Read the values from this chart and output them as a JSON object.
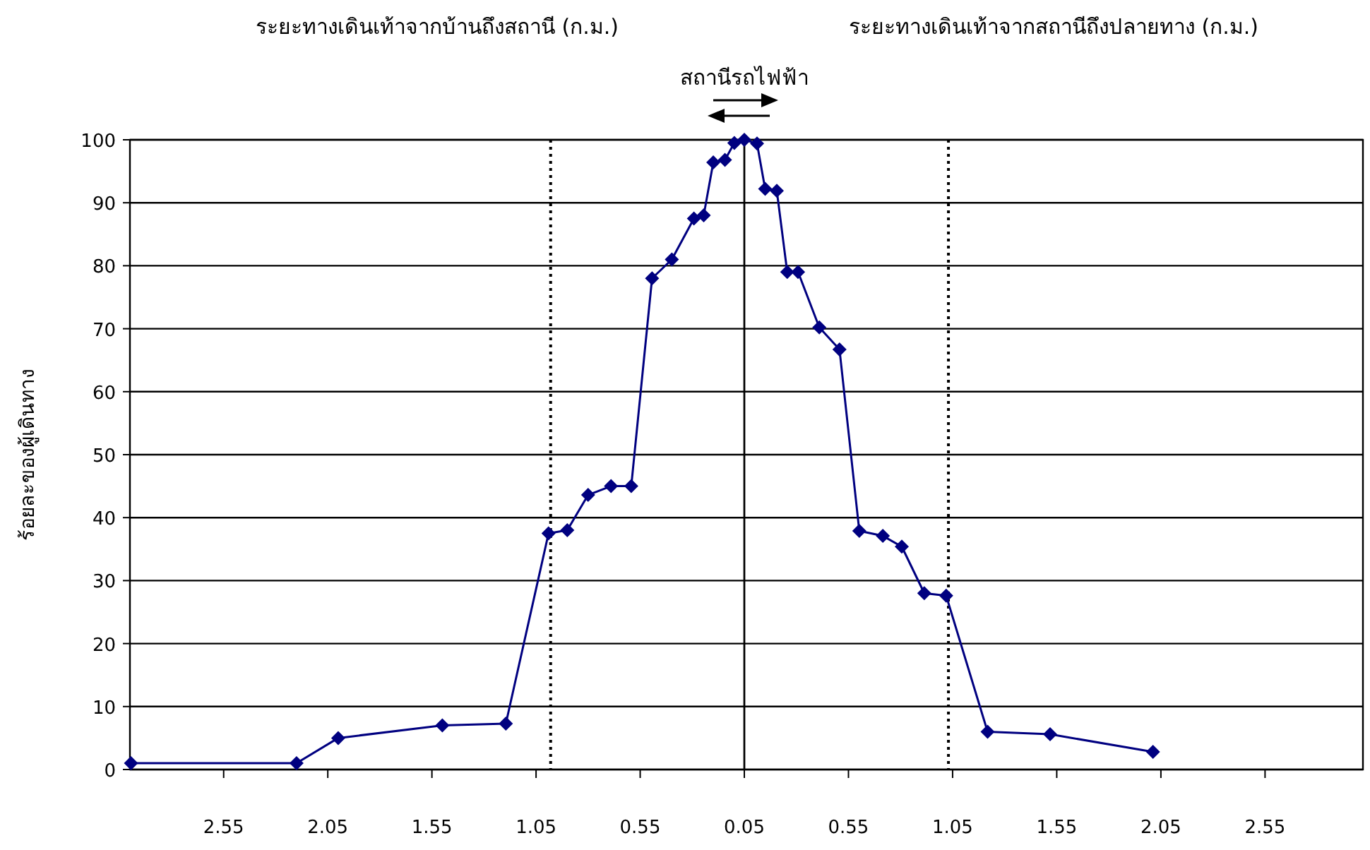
{
  "chart_data": [
    {
      "type": "line",
      "ylabel": "ร้อยละของผู้เดินทาง",
      "annotations": [
        "ระยะทางเดินเท้าจากบ้านถึงสถานี (ก.ม.)",
        "สถานีรถไฟฟ้า"
      ],
      "x": [
        2.995,
        2.2,
        2.0,
        1.5,
        1.195,
        0.99,
        0.9,
        0.8,
        0.69,
        0.593,
        0.493,
        0.398,
        0.292,
        0.245,
        0.199,
        0.143,
        0.098
      ],
      "series": [
        {
          "color": "#000080",
          "values": [
            1,
            1,
            5,
            7,
            7.3,
            37.5,
            38,
            43.6,
            45,
            45,
            78,
            81,
            87.5,
            88,
            96.4,
            96.8,
            99.5
          ]
        }
      ],
      "xlim": [
        3.0,
        0.05
      ],
      "xticks": [
        2.55,
        2.05,
        1.55,
        1.05,
        0.55,
        0.05
      ],
      "ylim": [
        0,
        100
      ],
      "yticks": [
        0,
        10,
        20,
        30,
        40,
        50,
        60,
        70,
        80,
        90,
        100
      ],
      "grid": "y",
      "marker": "diamond",
      "line_style": "solid",
      "ref_lines": [
        {
          "axis": "x",
          "value": 0.98,
          "color": "#000000",
          "line_style": "dotted"
        }
      ]
    },
    {
      "type": "line",
      "annotations": [
        "ระยะทางเดินเท้าจากสถานีถึงปลายทาง (ก.ม.)"
      ],
      "x": [
        0.05,
        0.111,
        0.15,
        0.206,
        0.256,
        0.308,
        0.41,
        0.507,
        0.602,
        0.715,
        0.806,
        0.914,
        1.019,
        1.218,
        1.518,
        2.012
      ],
      "series": [
        {
          "color": "#000080",
          "values": [
            100,
            99.4,
            92.2,
            91.9,
            79,
            79,
            70.2,
            66.7,
            37.9,
            37.1,
            35.4,
            28,
            27.6,
            6,
            5.6,
            2.8
          ]
        }
      ],
      "xlim": [
        0.05,
        3.02
      ],
      "xticks": [
        0.55,
        1.05,
        1.55,
        2.05,
        2.55
      ],
      "ylim": [
        0,
        100
      ],
      "yticks": [
        0,
        10,
        20,
        30,
        40,
        50,
        60,
        70,
        80,
        90,
        100
      ],
      "tick_labels": "x",
      "grid": "y",
      "marker": "diamond",
      "line_style": "solid",
      "ref_lines": [
        {
          "axis": "x",
          "value": 1.03,
          "color": "#000000",
          "line_style": "dotted"
        }
      ]
    }
  ]
}
